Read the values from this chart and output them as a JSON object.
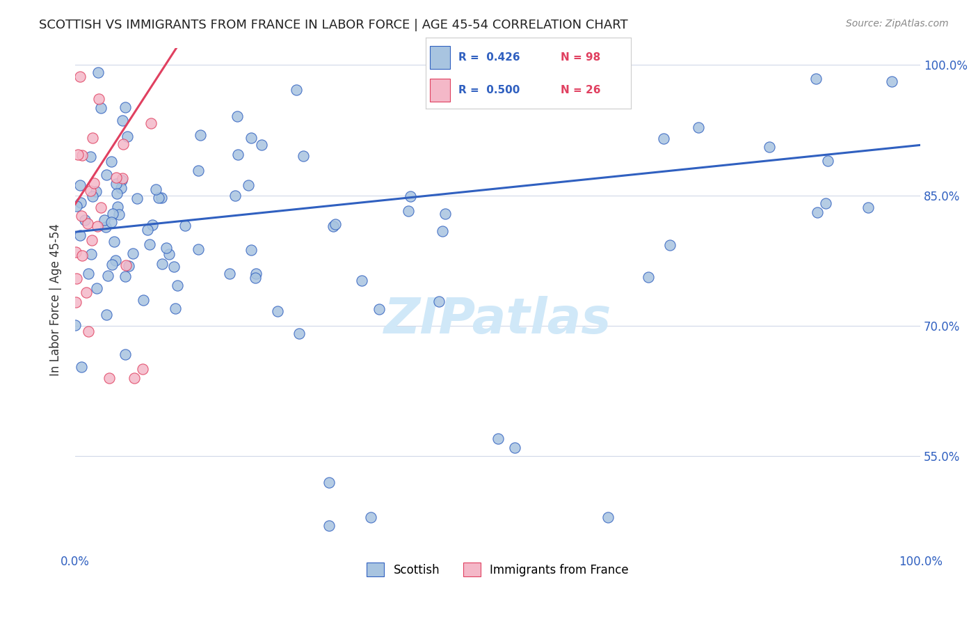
{
  "title": "SCOTTISH VS IMMIGRANTS FROM FRANCE IN LABOR FORCE | AGE 45-54 CORRELATION CHART",
  "source": "Source: ZipAtlas.com",
  "ylabel": "In Labor Force | Age 45-54",
  "ytick_labels": [
    "100.0%",
    "85.0%",
    "70.0%",
    "55.0%"
  ],
  "ytick_values": [
    1.0,
    0.85,
    0.7,
    0.55
  ],
  "xlim": [
    0.0,
    1.0
  ],
  "ylim": [
    0.44,
    1.02
  ],
  "legend_label1": "Scottish",
  "legend_label2": "Immigrants from France",
  "scatter_blue_color": "#a8c4e0",
  "scatter_pink_color": "#f4b8c8",
  "line_blue_color": "#3060c0",
  "line_pink_color": "#e04060",
  "watermark_color": "#d0e8f8",
  "blue_R": "0.426",
  "blue_N": "98",
  "pink_R": "0.500",
  "pink_N": "26",
  "blue_line_x": [
    0.0,
    1.0
  ],
  "blue_line_y": [
    0.808,
    0.908
  ],
  "pink_line_x": [
    0.0,
    0.12
  ],
  "pink_line_y": [
    0.84,
    1.02
  ]
}
